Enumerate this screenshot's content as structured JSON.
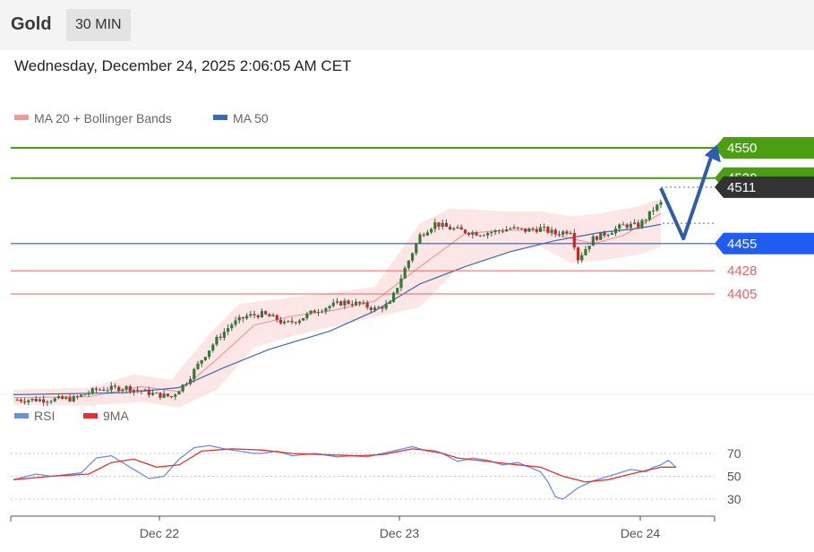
{
  "header": {
    "title": "Gold",
    "timeframe": "30 MIN"
  },
  "timestamp": "Wednesday, December 24, 2025 2:06:05 AM CET",
  "colors": {
    "green": "#4a9e12",
    "blue": "#1f5cf2",
    "red": "#f06060",
    "dark": "#333333",
    "bands": "#fde0e0",
    "ma20": "#f29a9a",
    "ma50": "#3c6bb0",
    "arrow": "#2f5ea8",
    "rsi": "#6b8ee6",
    "rsi_ma": "#e8302f"
  },
  "legend": [
    {
      "label": "MA 20 + Bollinger Bands",
      "color": "#f29a9a"
    },
    {
      "label": "MA 50",
      "color": "#3c6bb0"
    }
  ],
  "levels": [
    {
      "value": 4550,
      "label": "4550",
      "style": "tag",
      "color": "green"
    },
    {
      "value": 4520,
      "label": "4520",
      "style": "tag",
      "color": "green"
    },
    {
      "value": 4511,
      "label": "4511",
      "style": "tag",
      "color": "dark"
    },
    {
      "value": 4455,
      "label": "4455",
      "style": "tag",
      "color": "blue"
    },
    {
      "value": 4428,
      "label": "4428",
      "style": "text",
      "color": "red"
    },
    {
      "value": 4405,
      "label": "4405",
      "style": "text",
      "color": "red"
    }
  ],
  "rsi_panel": {
    "legend": [
      {
        "label": "RSI",
        "color": "#6b8ee6"
      },
      {
        "label": "9MA",
        "color": "#e8302f"
      }
    ],
    "levels": [
      {
        "value": 70,
        "label": "70"
      },
      {
        "value": 50,
        "label": "50"
      },
      {
        "value": 30,
        "label": "30"
      }
    ]
  },
  "x_labels": [
    "Dec 22",
    "Dec 23",
    "Dec 24"
  ],
  "chart_data": {
    "type": "candlestick",
    "price_range": [
      4290,
      4560
    ],
    "rsi_range": [
      20,
      80
    ],
    "close_path": [
      [
        0,
        4300
      ],
      [
        8,
        4300
      ],
      [
        16,
        4301
      ],
      [
        22,
        4310
      ],
      [
        30,
        4312
      ],
      [
        38,
        4305
      ],
      [
        42,
        4303
      ],
      [
        46,
        4318
      ],
      [
        50,
        4340
      ],
      [
        54,
        4360
      ],
      [
        58,
        4375
      ],
      [
        62,
        4383
      ],
      [
        66,
        4385
      ],
      [
        70,
        4380
      ],
      [
        72,
        4375
      ],
      [
        76,
        4380
      ],
      [
        80,
        4388
      ],
      [
        84,
        4393
      ],
      [
        88,
        4397
      ],
      [
        92,
        4395
      ],
      [
        96,
        4390
      ],
      [
        100,
        4395
      ],
      [
        104,
        4430
      ],
      [
        108,
        4463
      ],
      [
        112,
        4475
      ],
      [
        116,
        4470
      ],
      [
        120,
        4467
      ],
      [
        124,
        4465
      ],
      [
        128,
        4467
      ],
      [
        132,
        4470
      ],
      [
        136,
        4468
      ],
      [
        140,
        4470
      ],
      [
        144,
        4465
      ],
      [
        148,
        4468
      ],
      [
        150,
        4440
      ],
      [
        152,
        4450
      ],
      [
        154,
        4460
      ],
      [
        158,
        4466
      ],
      [
        162,
        4473
      ],
      [
        166,
        4473
      ],
      [
        168,
        4480
      ],
      [
        170,
        4489
      ],
      [
        172,
        4495
      ]
    ],
    "ma20_path": [
      [
        0,
        4302
      ],
      [
        20,
        4303
      ],
      [
        34,
        4313
      ],
      [
        44,
        4308
      ],
      [
        54,
        4340
      ],
      [
        64,
        4374
      ],
      [
        74,
        4383
      ],
      [
        84,
        4388
      ],
      [
        96,
        4398
      ],
      [
        108,
        4432
      ],
      [
        120,
        4465
      ],
      [
        130,
        4468
      ],
      [
        140,
        4469
      ],
      [
        146,
        4462
      ],
      [
        154,
        4455
      ],
      [
        162,
        4463
      ],
      [
        172,
        4485
      ]
    ],
    "upper_band_path": [
      [
        0,
        4310
      ],
      [
        20,
        4312
      ],
      [
        32,
        4325
      ],
      [
        42,
        4320
      ],
      [
        52,
        4365
      ],
      [
        60,
        4395
      ],
      [
        70,
        4400
      ],
      [
        82,
        4405
      ],
      [
        96,
        4412
      ],
      [
        108,
        4475
      ],
      [
        116,
        4490
      ],
      [
        130,
        4487
      ],
      [
        140,
        4487
      ],
      [
        148,
        4482
      ],
      [
        156,
        4485
      ],
      [
        166,
        4492
      ],
      [
        172,
        4500
      ]
    ],
    "lower_band_path": [
      [
        0,
        4295
      ],
      [
        20,
        4294
      ],
      [
        34,
        4298
      ],
      [
        44,
        4292
      ],
      [
        54,
        4310
      ],
      [
        64,
        4352
      ],
      [
        74,
        4363
      ],
      [
        84,
        4372
      ],
      [
        96,
        4382
      ],
      [
        108,
        4392
      ],
      [
        118,
        4430
      ],
      [
        130,
        4445
      ],
      [
        140,
        4452
      ],
      [
        148,
        4436
      ],
      [
        156,
        4438
      ],
      [
        166,
        4444
      ],
      [
        172,
        4452
      ]
    ],
    "ma50_path": [
      [
        0,
        4305
      ],
      [
        30,
        4307
      ],
      [
        44,
        4312
      ],
      [
        56,
        4332
      ],
      [
        68,
        4350
      ],
      [
        84,
        4368
      ],
      [
        96,
        4388
      ],
      [
        108,
        4415
      ],
      [
        120,
        4432
      ],
      [
        132,
        4447
      ],
      [
        144,
        4458
      ],
      [
        156,
        4466
      ],
      [
        166,
        4470
      ],
      [
        172,
        4474
      ]
    ],
    "rsi_path": [
      [
        0,
        47
      ],
      [
        6,
        52
      ],
      [
        10,
        50
      ],
      [
        18,
        53
      ],
      [
        22,
        66
      ],
      [
        26,
        68
      ],
      [
        32,
        56
      ],
      [
        36,
        48
      ],
      [
        40,
        50
      ],
      [
        44,
        65
      ],
      [
        48,
        75
      ],
      [
        52,
        77
      ],
      [
        56,
        74
      ],
      [
        60,
        72
      ],
      [
        64,
        70
      ],
      [
        66,
        70
      ],
      [
        70,
        72
      ],
      [
        74,
        68
      ],
      [
        80,
        70
      ],
      [
        86,
        67
      ],
      [
        90,
        68
      ],
      [
        94,
        67
      ],
      [
        98,
        70
      ],
      [
        102,
        73
      ],
      [
        106,
        76
      ],
      [
        110,
        72
      ],
      [
        114,
        70
      ],
      [
        118,
        63
      ],
      [
        122,
        66
      ],
      [
        126,
        64
      ],
      [
        130,
        60
      ],
      [
        134,
        62
      ],
      [
        140,
        54
      ],
      [
        142,
        45
      ],
      [
        144,
        32
      ],
      [
        146,
        30
      ],
      [
        150,
        40
      ],
      [
        154,
        46
      ],
      [
        160,
        52
      ],
      [
        164,
        56
      ],
      [
        168,
        54
      ],
      [
        170,
        58
      ],
      [
        172,
        60
      ],
      [
        174,
        64
      ],
      [
        176,
        58
      ]
    ],
    "rsi_ma_path": [
      [
        0,
        47
      ],
      [
        10,
        50
      ],
      [
        20,
        52
      ],
      [
        26,
        62
      ],
      [
        32,
        65
      ],
      [
        38,
        58
      ],
      [
        44,
        60
      ],
      [
        50,
        72
      ],
      [
        58,
        74
      ],
      [
        66,
        73
      ],
      [
        74,
        70
      ],
      [
        82,
        69
      ],
      [
        92,
        68
      ],
      [
        98,
        69
      ],
      [
        106,
        74
      ],
      [
        112,
        72
      ],
      [
        118,
        66
      ],
      [
        126,
        63
      ],
      [
        134,
        60
      ],
      [
        140,
        58
      ],
      [
        146,
        50
      ],
      [
        152,
        45
      ],
      [
        158,
        47
      ],
      [
        164,
        52
      ],
      [
        168,
        55
      ],
      [
        172,
        58
      ],
      [
        176,
        58
      ]
    ],
    "forecast": {
      "points": [
        [
          172,
          4510
        ],
        [
          178,
          4460
        ],
        [
          186,
          4548
        ]
      ],
      "color": "#2f5ea8"
    }
  }
}
